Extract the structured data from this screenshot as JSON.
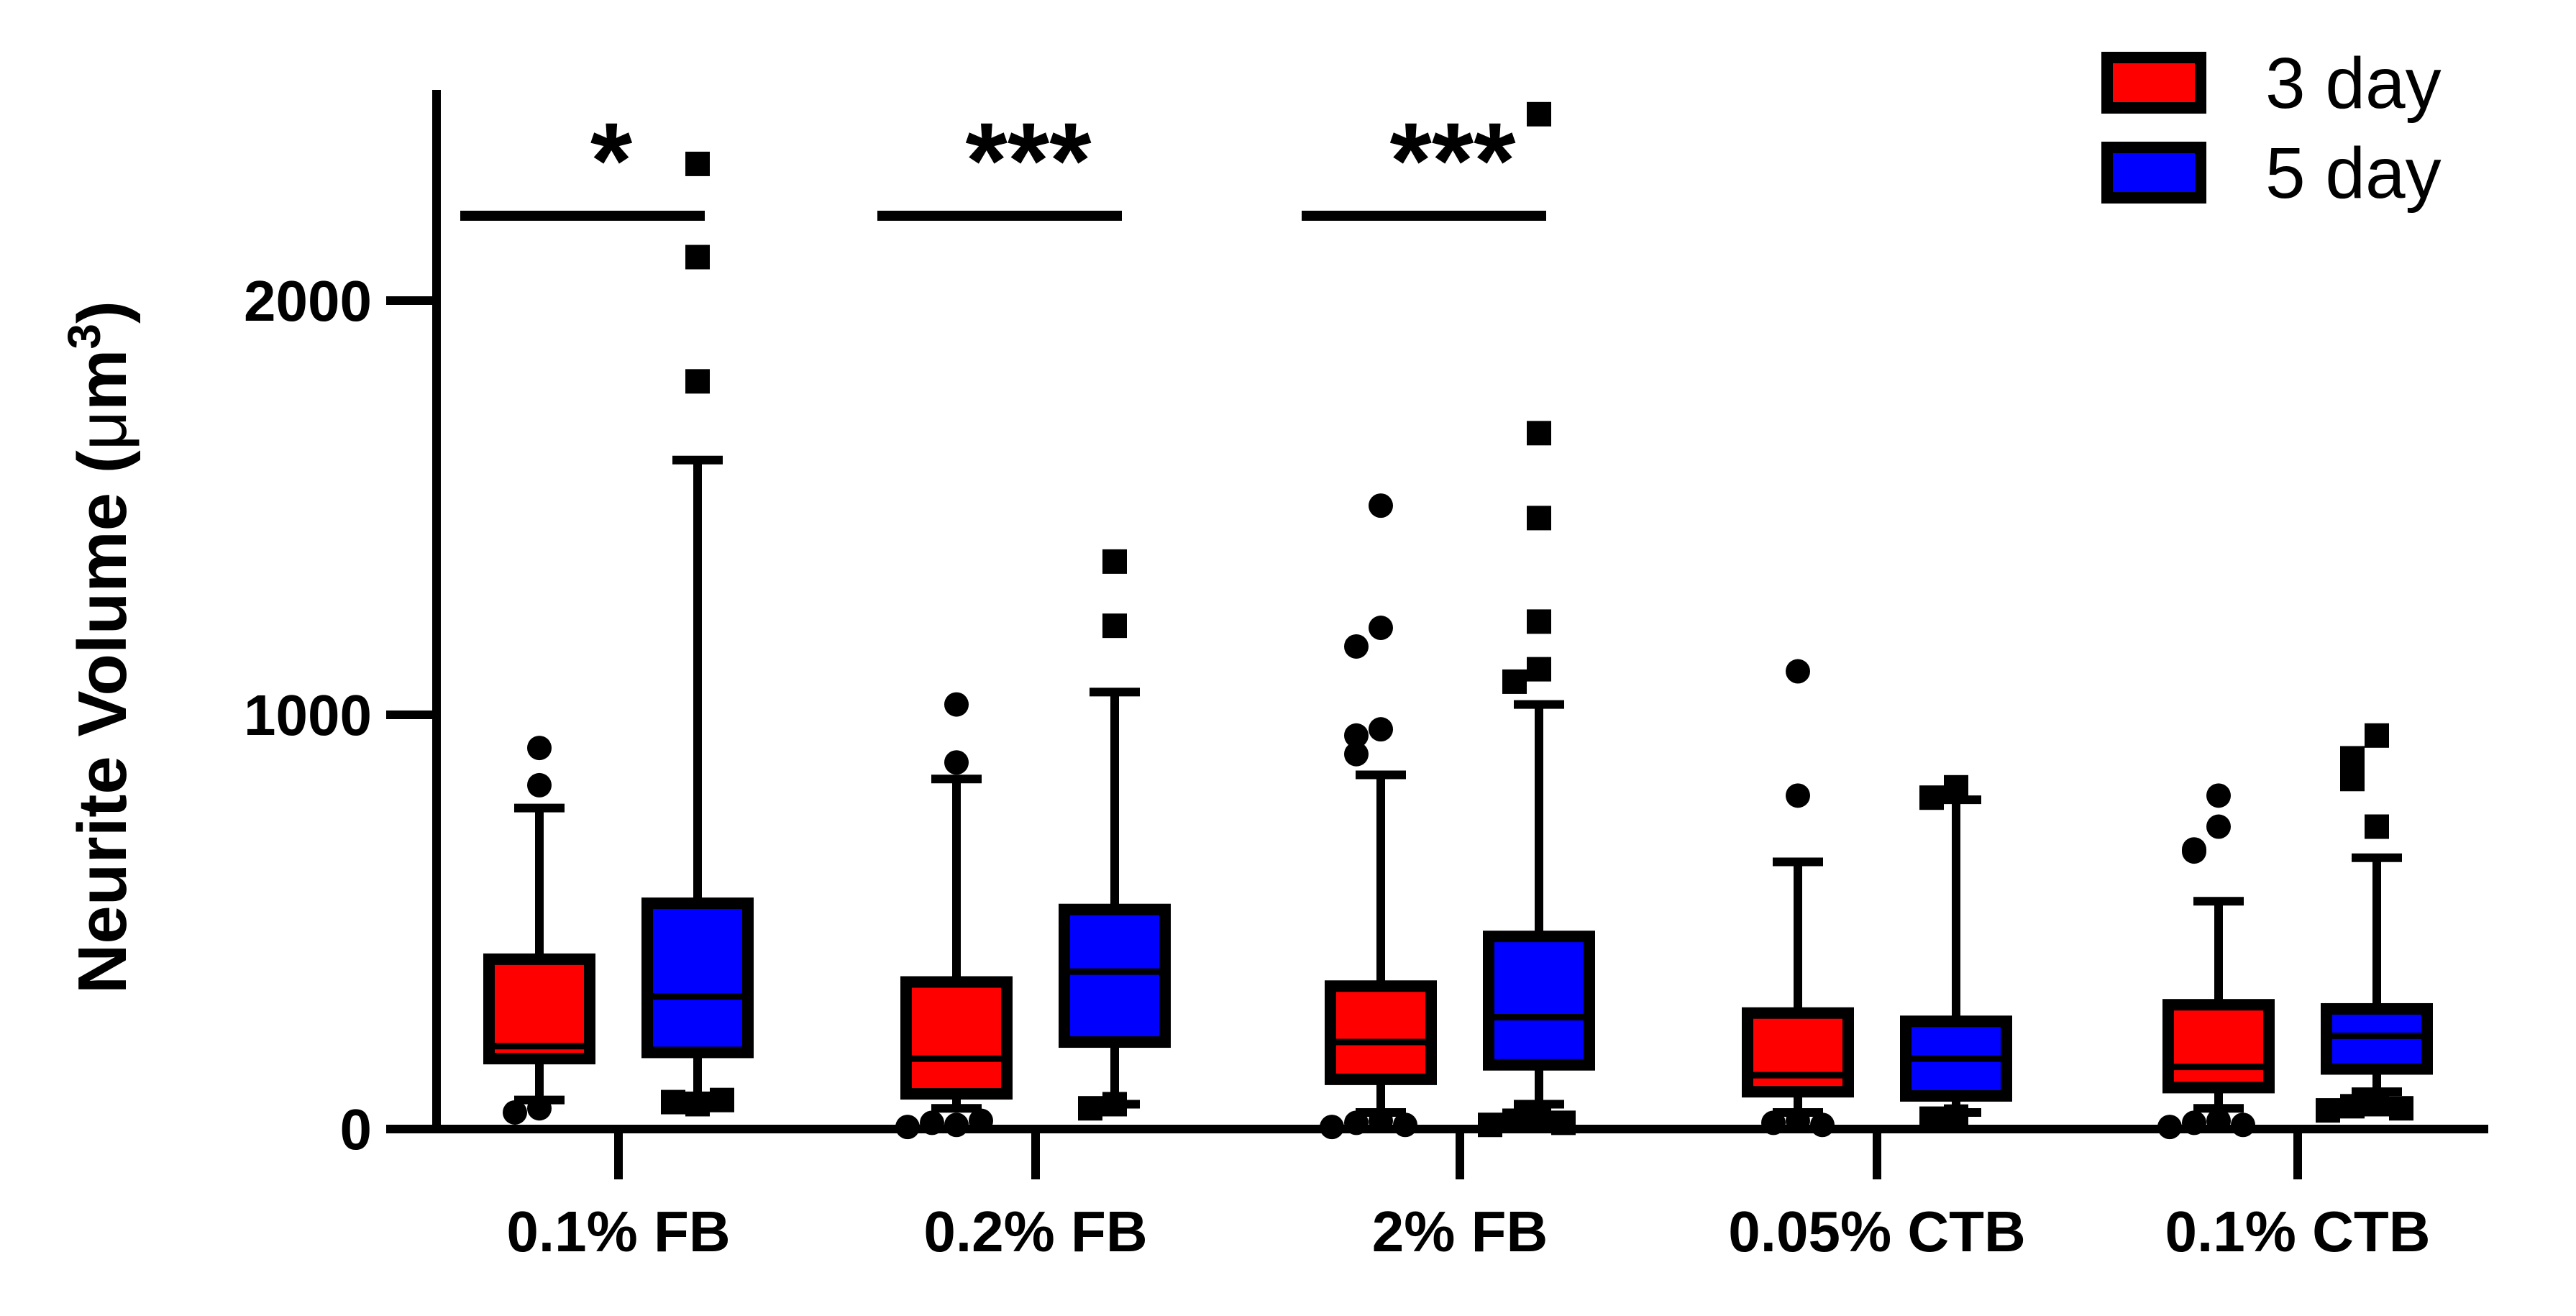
{
  "chart_data": {
    "type": "box",
    "title": "",
    "ylabel": "Neurite Volume (μm³)",
    "ylabel_parts": [
      "Neurite Volume (",
      "μ",
      "m",
      "3",
      ")"
    ],
    "ylim": [
      0,
      2400
    ],
    "yticks": [
      0,
      1000,
      2000
    ],
    "categories": [
      "0.1% FB",
      "0.2% FB",
      "2% FB",
      "0.05% CTB",
      "0.1% CTB"
    ],
    "series": [
      {
        "name": "3 day",
        "color": "#ff0000",
        "marker": "circle",
        "boxes": [
          {
            "whisker_low": 70,
            "q1": 170,
            "median": 200,
            "q3": 410,
            "whisker_high": 775,
            "outliers": [
              920,
              830,
              50,
              40
            ]
          },
          {
            "whisker_low": 50,
            "q1": 85,
            "median": 170,
            "q3": 355,
            "whisker_high": 845,
            "outliers": [
              1025,
              885,
              10,
              15,
              20,
              5
            ]
          },
          {
            "whisker_low": 40,
            "q1": 120,
            "median": 210,
            "q3": 345,
            "whisker_high": 855,
            "outliers": [
              1505,
              1210,
              1165,
              965,
              950,
              905,
              20,
              15,
              10,
              5
            ]
          },
          {
            "whisker_low": 40,
            "q1": 90,
            "median": 130,
            "q3": 280,
            "whisker_high": 645,
            "outliers": [
              1105,
              805,
              20,
              15,
              10
            ]
          },
          {
            "whisker_low": 50,
            "q1": 100,
            "median": 150,
            "q3": 300,
            "whisker_high": 550,
            "outliers": [
              805,
              730,
              675,
              670,
              20,
              15,
              10,
              5
            ]
          }
        ]
      },
      {
        "name": "5 day",
        "color": "#0000ff",
        "marker": "square",
        "boxes": [
          {
            "whisker_low": 80,
            "q1": 185,
            "median": 320,
            "q3": 545,
            "whisker_high": 1615,
            "outliers": [
              2330,
              2105,
              1805,
              60,
              65,
              70
            ]
          },
          {
            "whisker_low": 60,
            "q1": 210,
            "median": 380,
            "q3": 530,
            "whisker_high": 1055,
            "outliers": [
              1370,
              1215,
              60,
              50
            ]
          },
          {
            "whisker_low": 60,
            "q1": 155,
            "median": 270,
            "q3": 465,
            "whisker_high": 1025,
            "outliers": [
              2450,
              1680,
              1475,
              1225,
              1110,
              1080,
              30,
              20,
              15,
              10
            ]
          },
          {
            "whisker_low": 40,
            "q1": 80,
            "median": 170,
            "q3": 260,
            "whisker_high": 795,
            "outliers": [
              825,
              800,
              30,
              25
            ]
          },
          {
            "whisker_low": 90,
            "q1": 145,
            "median": 225,
            "q3": 290,
            "whisker_high": 655,
            "outliers": [
              950,
              895,
              845,
              730,
              60,
              55,
              50,
              45
            ]
          }
        ]
      }
    ],
    "significance": [
      {
        "category": "0.1% FB",
        "label": "*"
      },
      {
        "category": "0.2% FB",
        "label": "***"
      },
      {
        "category": "2% FB",
        "label": "***"
      }
    ],
    "legend_position": "top-right"
  }
}
